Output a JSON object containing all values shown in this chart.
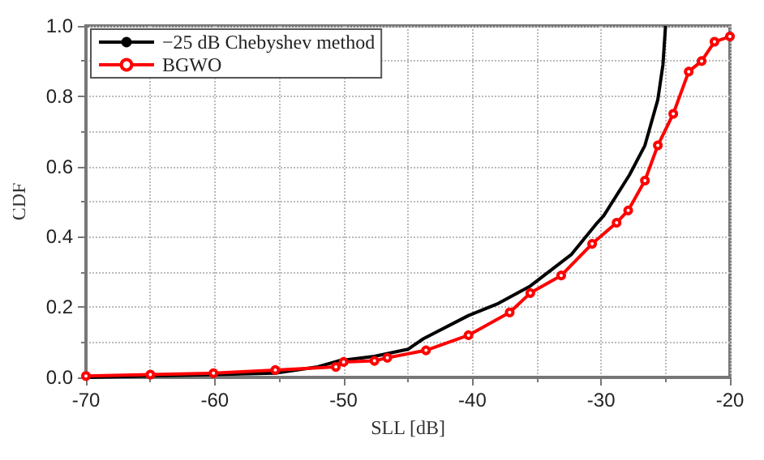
{
  "chart_data": {
    "type": "line",
    "xlabel": "SLL [dB]",
    "ylabel": "CDF",
    "xlim": [
      -70,
      -20
    ],
    "xticks": [
      -70,
      -60,
      -50,
      -40,
      -30,
      -20
    ],
    "ylim": [
      0,
      1
    ],
    "yticks": [
      {
        "value": 0,
        "label": "0.0"
      },
      0.2,
      0.4,
      0.6,
      0.8,
      {
        "value": 1,
        "label": "1.0"
      }
    ],
    "grid": true,
    "legend": "top left",
    "series": [
      {
        "name": "−25 dB Chebyshev method",
        "color": "#000000",
        "x": [
          -70,
          -65,
          -60,
          -55.3,
          -52,
          -50.4,
          -47.6,
          -45,
          -43.8,
          -40.3,
          -38,
          -35.5,
          -32.3,
          -30.3,
          -29.8,
          -27.8,
          -26.6,
          -25.6,
          -25.2,
          -25
        ],
        "values": [
          0,
          0.004,
          0.008,
          0.012,
          0.03,
          0.047,
          0.06,
          0.08,
          0.11,
          0.176,
          0.21,
          0.26,
          0.35,
          0.44,
          0.46,
          0.576,
          0.66,
          0.79,
          0.89,
          1
        ]
      },
      {
        "name": "BGWO",
        "color": "#ff0000",
        "marker": "circle",
        "x": [
          -70,
          -65,
          -60.1,
          -55.3,
          -50.6,
          -50,
          -47.6,
          -46.6,
          -43.6,
          -40.3,
          -37.1,
          -35.5,
          -33.1,
          -30.7,
          -28.8,
          -27.9,
          -26.6,
          -25.6,
          -24.4,
          -23.2,
          -22.2,
          -21.2,
          -20
        ],
        "values": [
          0.004,
          0.008,
          0.012,
          0.021,
          0.03,
          0.044,
          0.047,
          0.056,
          0.077,
          0.12,
          0.185,
          0.24,
          0.29,
          0.38,
          0.44,
          0.475,
          0.56,
          0.66,
          0.75,
          0.87,
          0.9,
          0.955,
          0.97
        ]
      }
    ]
  }
}
